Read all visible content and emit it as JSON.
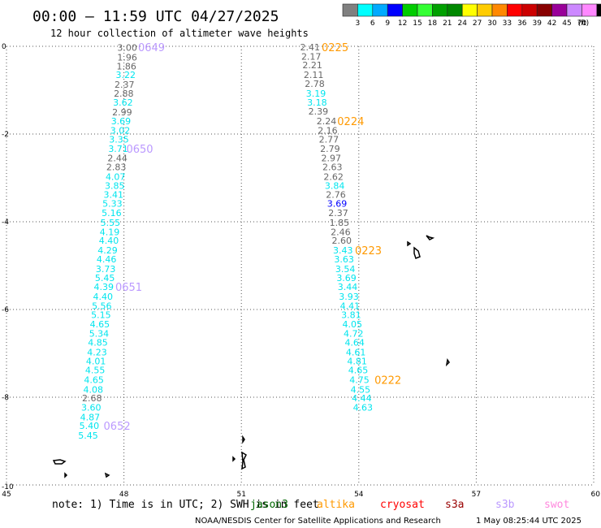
{
  "header": {
    "title": "00:00 — 11:59 UTC 04/27/2025",
    "subtitle": "12 hour collection of altimeter wave heights"
  },
  "legend": {
    "unit": "(ft)",
    "bins": [
      {
        "label": "",
        "color": "#808080"
      },
      {
        "label": "3",
        "color": "#00ffff"
      },
      {
        "label": "6",
        "color": "#00aaff"
      },
      {
        "label": "9",
        "color": "#0000ff"
      },
      {
        "label": "12",
        "color": "#00cc00"
      },
      {
        "label": "15",
        "color": "#33ff33"
      },
      {
        "label": "18",
        "color": "#00a000"
      },
      {
        "label": "21",
        "color": "#008800"
      },
      {
        "label": "24",
        "color": "#ffff00"
      },
      {
        "label": "27",
        "color": "#ffcc00"
      },
      {
        "label": "30",
        "color": "#ff8800"
      },
      {
        "label": "33",
        "color": "#ff0000"
      },
      {
        "label": "36",
        "color": "#cc0000"
      },
      {
        "label": "39",
        "color": "#880000"
      },
      {
        "label": "42",
        "color": "#990099"
      },
      {
        "label": "45",
        "color": "#cc88ff"
      },
      {
        "label": "70",
        "color": "#ff88ff"
      },
      {
        "label": "",
        "color": "#000000"
      }
    ]
  },
  "footer": {
    "note": "note:  1) Time is in UTC; 2) SWH is in feet",
    "satellites": [
      {
        "name": "jason3",
        "color": "#006600"
      },
      {
        "name": "altika",
        "color": "#ff9900"
      },
      {
        "name": "cryosat",
        "color": "#ff0000"
      },
      {
        "name": "s3a",
        "color": "#990000"
      },
      {
        "name": "s3b",
        "color": "#bb99ff"
      },
      {
        "name": "swot",
        "color": "#ff88dd"
      }
    ],
    "credit": "NOAA/NESDIS Center for Satellite Applications and Research",
    "timestamp": "1 May 08:25:44 UTC 2025"
  },
  "chart_data": {
    "type": "scatter",
    "title": "00:00 — 11:59 UTC 04/27/2025",
    "subtitle": "12 hour collection of altimeter wave heights",
    "xlabel": "",
    "ylabel": "",
    "xlim": [
      45,
      60
    ],
    "ylim": [
      -10,
      0
    ],
    "xticks": [
      45,
      48,
      51,
      54,
      57,
      60
    ],
    "yticks": [
      0,
      -2,
      -4,
      -6,
      -8,
      -10
    ],
    "grid": true,
    "gray_color": "#666666",
    "cyan_color": "#00e5ee",
    "series": [
      {
        "points": [
          {
            "x": 47.83,
            "y": -0.03,
            "v": "3.00",
            "c": "g"
          },
          {
            "x": 47.83,
            "y": -0.25,
            "v": "1.96",
            "c": "g"
          },
          {
            "x": 47.81,
            "y": -0.45,
            "v": "1.86",
            "c": "g"
          },
          {
            "x": 47.79,
            "y": -0.65,
            "v": "3.22",
            "c": "c"
          },
          {
            "x": 47.76,
            "y": -0.87,
            "v": "2.37",
            "c": "g"
          },
          {
            "x": 47.74,
            "y": -1.07,
            "v": "2.88",
            "c": "g"
          },
          {
            "x": 47.72,
            "y": -1.28,
            "v": "3.62",
            "c": "c"
          },
          {
            "x": 47.7,
            "y": -1.5,
            "v": "2.99",
            "c": "g"
          },
          {
            "x": 47.67,
            "y": -1.7,
            "v": "3.69",
            "c": "c"
          },
          {
            "x": 47.65,
            "y": -1.92,
            "v": "3.02",
            "c": "c"
          },
          {
            "x": 47.62,
            "y": -2.12,
            "v": "3.35",
            "c": "c"
          },
          {
            "x": 47.6,
            "y": -2.33,
            "v": "3.71",
            "c": "c"
          },
          {
            "x": 47.58,
            "y": -2.55,
            "v": "2.44",
            "c": "g"
          },
          {
            "x": 47.55,
            "y": -2.75,
            "v": "2.83",
            "c": "g"
          },
          {
            "x": 47.53,
            "y": -2.97,
            "v": "4.07",
            "c": "c"
          },
          {
            "x": 47.51,
            "y": -3.18,
            "v": "3.85",
            "c": "c"
          },
          {
            "x": 47.48,
            "y": -3.38,
            "v": "3.41",
            "c": "c"
          },
          {
            "x": 47.45,
            "y": -3.58,
            "v": "5.33",
            "c": "c"
          },
          {
            "x": 47.43,
            "y": -3.8,
            "v": "5.16",
            "c": "c"
          },
          {
            "x": 47.4,
            "y": -4.02,
            "v": "5.55",
            "c": "c"
          },
          {
            "x": 47.38,
            "y": -4.23,
            "v": "4.19",
            "c": "c"
          },
          {
            "x": 47.36,
            "y": -4.43,
            "v": "4.40",
            "c": "c"
          },
          {
            "x": 47.33,
            "y": -4.65,
            "v": "4.29",
            "c": "c"
          },
          {
            "x": 47.3,
            "y": -4.85,
            "v": "4.46",
            "c": "c"
          },
          {
            "x": 47.28,
            "y": -5.07,
            "v": "3.73",
            "c": "c"
          },
          {
            "x": 47.26,
            "y": -5.28,
            "v": "5.45",
            "c": "c"
          },
          {
            "x": 47.23,
            "y": -5.48,
            "v": "4.39",
            "c": "c"
          },
          {
            "x": 47.21,
            "y": -5.7,
            "v": "4.40",
            "c": "c"
          },
          {
            "x": 47.18,
            "y": -5.92,
            "v": "5.56",
            "c": "c"
          },
          {
            "x": 47.16,
            "y": -6.12,
            "v": "5.15",
            "c": "c"
          },
          {
            "x": 47.13,
            "y": -6.33,
            "v": "4.65",
            "c": "c"
          },
          {
            "x": 47.11,
            "y": -6.55,
            "v": "5.34",
            "c": "c"
          },
          {
            "x": 47.08,
            "y": -6.75,
            "v": "4.85",
            "c": "c"
          },
          {
            "x": 47.06,
            "y": -6.97,
            "v": "4.23",
            "c": "c"
          },
          {
            "x": 47.03,
            "y": -7.18,
            "v": "4.01",
            "c": "c"
          },
          {
            "x": 47.01,
            "y": -7.38,
            "v": "4.55",
            "c": "c"
          },
          {
            "x": 46.98,
            "y": -7.6,
            "v": "4.65",
            "c": "c"
          },
          {
            "x": 46.96,
            "y": -7.82,
            "v": "4.08",
            "c": "c"
          },
          {
            "x": 46.93,
            "y": -8.02,
            "v": "2.68",
            "c": "g"
          },
          {
            "x": 46.91,
            "y": -8.23,
            "v": "3.60",
            "c": "c"
          },
          {
            "x": 46.88,
            "y": -8.45,
            "v": "4.87",
            "c": "c"
          },
          {
            "x": 46.86,
            "y": -8.65,
            "v": "5.40",
            "c": "c"
          },
          {
            "x": 46.83,
            "y": -8.87,
            "v": "5.45",
            "c": "c"
          }
        ]
      },
      {
        "points": [
          {
            "x": 52.5,
            "y": -0.02,
            "v": "2.41",
            "c": "g"
          },
          {
            "x": 52.53,
            "y": -0.23,
            "v": "2.17",
            "c": "g"
          },
          {
            "x": 52.56,
            "y": -0.43,
            "v": "2.21",
            "c": "g"
          },
          {
            "x": 52.59,
            "y": -0.65,
            "v": "2.11",
            "c": "g"
          },
          {
            "x": 52.62,
            "y": -0.85,
            "v": "2.78",
            "c": "g"
          },
          {
            "x": 52.65,
            "y": -1.07,
            "v": "3.19",
            "c": "c"
          },
          {
            "x": 52.68,
            "y": -1.28,
            "v": "3.18",
            "c": "c"
          },
          {
            "x": 52.71,
            "y": -1.48,
            "v": "2.39",
            "c": "g"
          },
          {
            "x": 52.92,
            "y": -1.7,
            "v": "2.24",
            "c": "g"
          },
          {
            "x": 52.95,
            "y": -1.92,
            "v": "2.16",
            "c": "g"
          },
          {
            "x": 52.98,
            "y": -2.12,
            "v": "2.77",
            "c": "g"
          },
          {
            "x": 53.01,
            "y": -2.33,
            "v": "2.79",
            "c": "g"
          },
          {
            "x": 53.04,
            "y": -2.55,
            "v": "2.97",
            "c": "g"
          },
          {
            "x": 53.07,
            "y": -2.75,
            "v": "2.63",
            "c": "g"
          },
          {
            "x": 53.1,
            "y": -2.97,
            "v": "2.62",
            "c": "g"
          },
          {
            "x": 53.13,
            "y": -3.18,
            "v": "3.84",
            "c": "c"
          },
          {
            "x": 53.16,
            "y": -3.38,
            "v": "2.76",
            "c": "g"
          },
          {
            "x": 53.19,
            "y": -3.58,
            "v": "3.69",
            "c": "b"
          },
          {
            "x": 53.22,
            "y": -3.8,
            "v": "2.37",
            "c": "g"
          },
          {
            "x": 53.25,
            "y": -4.02,
            "v": "1.85",
            "c": "g"
          },
          {
            "x": 53.28,
            "y": -4.23,
            "v": "2.46",
            "c": "g"
          },
          {
            "x": 53.31,
            "y": -4.43,
            "v": "2.60",
            "c": "g"
          },
          {
            "x": 53.34,
            "y": -4.65,
            "v": "3.43",
            "c": "c"
          },
          {
            "x": 53.37,
            "y": -4.85,
            "v": "3.63",
            "c": "c"
          },
          {
            "x": 53.4,
            "y": -5.07,
            "v": "3.54",
            "c": "c"
          },
          {
            "x": 53.43,
            "y": -5.28,
            "v": "3.69",
            "c": "c"
          },
          {
            "x": 53.46,
            "y": -5.48,
            "v": "3.44",
            "c": "c"
          },
          {
            "x": 53.49,
            "y": -5.7,
            "v": "3.93",
            "c": "c"
          },
          {
            "x": 53.52,
            "y": -5.92,
            "v": "4.41",
            "c": "c"
          },
          {
            "x": 53.55,
            "y": -6.12,
            "v": "3.81",
            "c": "c"
          },
          {
            "x": 53.58,
            "y": -6.33,
            "v": "4.05",
            "c": "c"
          },
          {
            "x": 53.61,
            "y": -6.55,
            "v": "4.72",
            "c": "c"
          },
          {
            "x": 53.64,
            "y": -6.75,
            "v": "4.64",
            "c": "c"
          },
          {
            "x": 53.67,
            "y": -6.97,
            "v": "4.61",
            "c": "c"
          },
          {
            "x": 53.7,
            "y": -7.18,
            "v": "4.81",
            "c": "c"
          },
          {
            "x": 53.73,
            "y": -7.38,
            "v": "4.65",
            "c": "c"
          },
          {
            "x": 53.76,
            "y": -7.6,
            "v": "4.75",
            "c": "c"
          },
          {
            "x": 53.79,
            "y": -7.82,
            "v": "4.55",
            "c": "c"
          },
          {
            "x": 53.82,
            "y": -8.02,
            "v": "4.44",
            "c": "c"
          },
          {
            "x": 53.85,
            "y": -8.23,
            "v": "4.63",
            "c": "c"
          }
        ]
      }
    ],
    "time_labels": [
      {
        "x": 48.36,
        "y": -0.02,
        "text": "0649",
        "color": "#bb99ff"
      },
      {
        "x": 48.06,
        "y": -2.33,
        "text": "0650",
        "color": "#bb99ff"
      },
      {
        "x": 47.78,
        "y": -5.48,
        "text": "0651",
        "color": "#bb99ff"
      },
      {
        "x": 47.48,
        "y": -8.65,
        "text": "0652",
        "color": "#bb99ff"
      },
      {
        "x": 53.05,
        "y": -0.02,
        "text": "0225",
        "color": "#ff9900"
      },
      {
        "x": 53.45,
        "y": -1.7,
        "text": "0224",
        "color": "#ff9900"
      },
      {
        "x": 53.9,
        "y": -4.65,
        "text": "0223",
        "color": "#ff9900"
      },
      {
        "x": 54.4,
        "y": -7.6,
        "text": "0222",
        "color": "#ff9900"
      }
    ]
  }
}
